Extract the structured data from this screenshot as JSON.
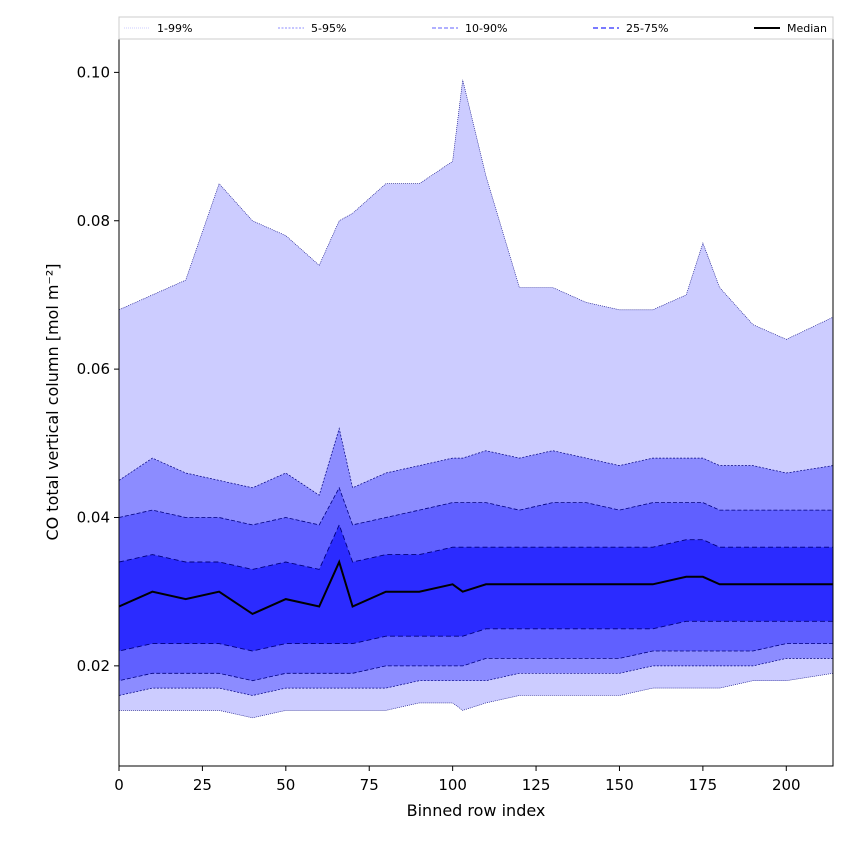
{
  "chart_data": {
    "type": "area",
    "title": "",
    "xlabel": "Binned row index",
    "ylabel": "CO total vertical column [mol m⁻²]",
    "xlim": [
      0,
      214
    ],
    "ylim": [
      0.0065,
      0.1045
    ],
    "xticks": [
      0,
      25,
      50,
      75,
      100,
      125,
      150,
      175,
      200
    ],
    "yticks": [
      0.02,
      0.04,
      0.06,
      0.08,
      0.1
    ],
    "ytick_labels": [
      "0.02",
      "0.04",
      "0.06",
      "0.08",
      "0.10"
    ],
    "grid": false,
    "legend_position": "top (above plot, full width)",
    "colors": {
      "band_1_99": "#ccccff",
      "band_5_95": "#8c8cff",
      "band_10_90": "#6060ff",
      "band_25_75": "#2b2bff",
      "band_edge": "#00007f",
      "median": "#000000"
    },
    "x": [
      0,
      10,
      20,
      30,
      40,
      50,
      60,
      66,
      70,
      80,
      90,
      100,
      103,
      110,
      120,
      130,
      140,
      150,
      160,
      170,
      175,
      180,
      190,
      200,
      214
    ],
    "series": [
      {
        "name": "1-99%",
        "upper": [
          0.068,
          0.07,
          0.072,
          0.085,
          0.08,
          0.078,
          0.074,
          0.08,
          0.081,
          0.085,
          0.085,
          0.088,
          0.099,
          0.086,
          0.071,
          0.071,
          0.069,
          0.068,
          0.068,
          0.07,
          0.077,
          0.071,
          0.066,
          0.064,
          0.067
        ],
        "lower": [
          0.014,
          0.014,
          0.014,
          0.014,
          0.013,
          0.014,
          0.014,
          0.014,
          0.014,
          0.014,
          0.015,
          0.015,
          0.014,
          0.015,
          0.016,
          0.016,
          0.016,
          0.016,
          0.017,
          0.017,
          0.017,
          0.017,
          0.018,
          0.018,
          0.019
        ]
      },
      {
        "name": "5-95%",
        "upper": [
          0.045,
          0.048,
          0.046,
          0.045,
          0.044,
          0.046,
          0.043,
          0.052,
          0.044,
          0.046,
          0.047,
          0.048,
          0.048,
          0.049,
          0.048,
          0.049,
          0.048,
          0.047,
          0.048,
          0.048,
          0.048,
          0.047,
          0.047,
          0.046,
          0.047
        ],
        "lower": [
          0.016,
          0.017,
          0.017,
          0.017,
          0.016,
          0.017,
          0.017,
          0.017,
          0.017,
          0.017,
          0.018,
          0.018,
          0.018,
          0.018,
          0.019,
          0.019,
          0.019,
          0.019,
          0.02,
          0.02,
          0.02,
          0.02,
          0.02,
          0.021,
          0.021
        ]
      },
      {
        "name": "10-90%",
        "upper": [
          0.04,
          0.041,
          0.04,
          0.04,
          0.039,
          0.04,
          0.039,
          0.044,
          0.039,
          0.04,
          0.041,
          0.042,
          0.042,
          0.042,
          0.041,
          0.042,
          0.042,
          0.041,
          0.042,
          0.042,
          0.042,
          0.041,
          0.041,
          0.041,
          0.041
        ],
        "lower": [
          0.018,
          0.019,
          0.019,
          0.019,
          0.018,
          0.019,
          0.019,
          0.019,
          0.019,
          0.02,
          0.02,
          0.02,
          0.02,
          0.021,
          0.021,
          0.021,
          0.021,
          0.021,
          0.022,
          0.022,
          0.022,
          0.022,
          0.022,
          0.023,
          0.023
        ]
      },
      {
        "name": "25-75%",
        "upper": [
          0.034,
          0.035,
          0.034,
          0.034,
          0.033,
          0.034,
          0.033,
          0.039,
          0.034,
          0.035,
          0.035,
          0.036,
          0.036,
          0.036,
          0.036,
          0.036,
          0.036,
          0.036,
          0.036,
          0.037,
          0.037,
          0.036,
          0.036,
          0.036,
          0.036
        ],
        "lower": [
          0.022,
          0.023,
          0.023,
          0.023,
          0.022,
          0.023,
          0.023,
          0.023,
          0.023,
          0.024,
          0.024,
          0.024,
          0.024,
          0.025,
          0.025,
          0.025,
          0.025,
          0.025,
          0.025,
          0.026,
          0.026,
          0.026,
          0.026,
          0.026,
          0.026
        ]
      },
      {
        "name": "Median",
        "values": [
          0.028,
          0.03,
          0.029,
          0.03,
          0.027,
          0.029,
          0.028,
          0.034,
          0.028,
          0.03,
          0.03,
          0.031,
          0.03,
          0.031,
          0.031,
          0.031,
          0.031,
          0.031,
          0.031,
          0.032,
          0.032,
          0.031,
          0.031,
          0.031,
          0.031
        ]
      }
    ]
  }
}
